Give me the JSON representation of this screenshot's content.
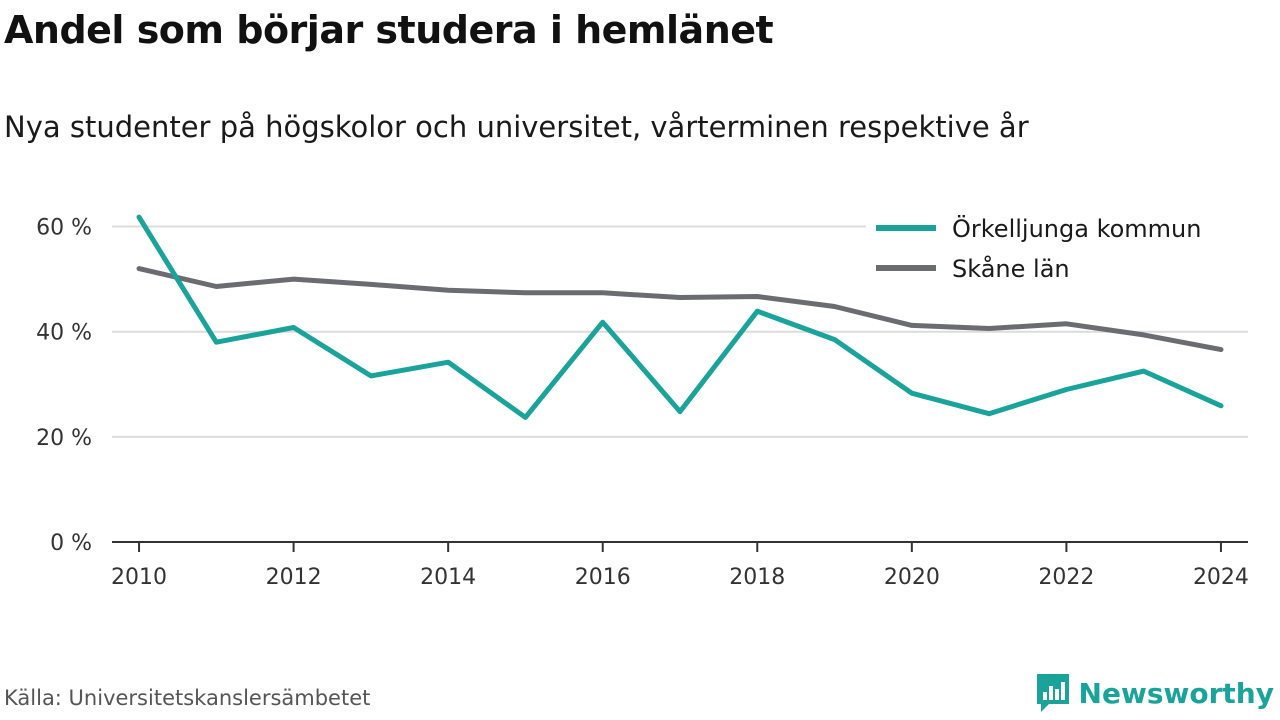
{
  "title": "Andel som börjar studera i hemlänet",
  "subtitle": "Nya studenter på högskolor och universitet, vårterminen respektive år",
  "source": "Källa: Universitetskanslersämbetet",
  "brand": {
    "name": "Newsworthy",
    "color": "#1aa39b"
  },
  "chart_data": {
    "type": "line",
    "x": [
      2010,
      2011,
      2012,
      2013,
      2014,
      2015,
      2016,
      2017,
      2018,
      2019,
      2020,
      2021,
      2022,
      2023,
      2024
    ],
    "series": [
      {
        "name": "Örkelljunga kommun",
        "color": "#1aa39b",
        "values": [
          61.8,
          38.0,
          40.8,
          31.6,
          34.2,
          23.7,
          41.8,
          24.8,
          43.9,
          38.5,
          28.3,
          24.4,
          29.0,
          32.5,
          25.9
        ]
      },
      {
        "name": "Skåne län",
        "color": "#6b6b72",
        "values": [
          52.0,
          48.6,
          50.0,
          49.0,
          47.9,
          47.4,
          47.4,
          46.5,
          46.7,
          44.8,
          41.2,
          40.6,
          41.5,
          39.4,
          36.6
        ]
      }
    ],
    "y_ticks": [
      0,
      20,
      40,
      60
    ],
    "y_tick_labels": [
      "0 %",
      "20 %",
      "40 %",
      "60 %"
    ],
    "x_ticks": [
      2010,
      2012,
      2014,
      2016,
      2018,
      2020,
      2022,
      2024
    ],
    "ylim": [
      0,
      66
    ],
    "xlim": [
      2009.65,
      2024.35
    ],
    "grid": "horizontal",
    "legend_position": "top-right"
  }
}
